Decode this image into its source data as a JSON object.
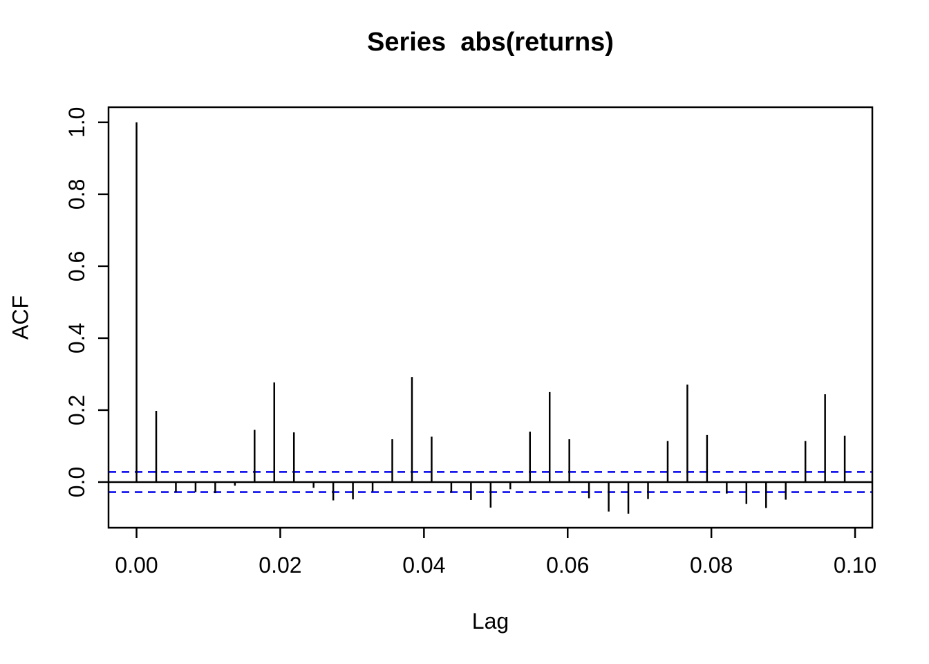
{
  "chart_data": {
    "type": "bar",
    "chart_kind": "autocorrelation-function",
    "title": "Series  abs(returns)",
    "xlabel": "Lag",
    "ylabel": "ACF",
    "grid": false,
    "legend": false,
    "xlim": [
      -0.0039,
      0.1024
    ],
    "ylim": [
      -0.127,
      1.042
    ],
    "x_ticks": {
      "values": [
        0.0,
        0.02,
        0.04,
        0.06,
        0.08,
        0.1
      ],
      "labels": [
        "0.00",
        "0.02",
        "0.04",
        "0.06",
        "0.08",
        "0.10"
      ]
    },
    "y_ticks": {
      "values": [
        0.0,
        0.2,
        0.4,
        0.6,
        0.8,
        1.0
      ],
      "labels": [
        "0.0",
        "0.2",
        "0.4",
        "0.6",
        "0.8",
        "1.0"
      ]
    },
    "lag_step": 0.00273785,
    "lags": [
      0,
      1,
      2,
      3,
      4,
      5,
      6,
      7,
      8,
      9,
      10,
      11,
      12,
      13,
      14,
      15,
      16,
      17,
      18,
      19,
      20,
      21,
      22,
      23,
      24,
      25,
      26,
      27,
      28,
      29,
      30,
      31,
      32,
      33,
      34,
      35,
      36
    ],
    "acf": [
      1.0,
      0.198,
      -0.029,
      -0.028,
      -0.031,
      -0.01,
      0.145,
      0.277,
      0.138,
      -0.016,
      -0.051,
      -0.048,
      -0.026,
      0.119,
      0.292,
      0.126,
      -0.03,
      -0.05,
      -0.071,
      -0.02,
      0.14,
      0.25,
      0.119,
      -0.045,
      -0.082,
      -0.088,
      -0.047,
      0.114,
      0.271,
      0.131,
      -0.032,
      -0.061,
      -0.072,
      -0.049,
      0.114,
      0.244,
      0.129
    ],
    "confidence_band": 0.028,
    "confidence_line_style": "dashed",
    "colors": {
      "spike": "#000000",
      "confidence": "#0000EE",
      "box": "#000000",
      "zero_line": "#000000",
      "background": "#FFFFFF"
    }
  }
}
